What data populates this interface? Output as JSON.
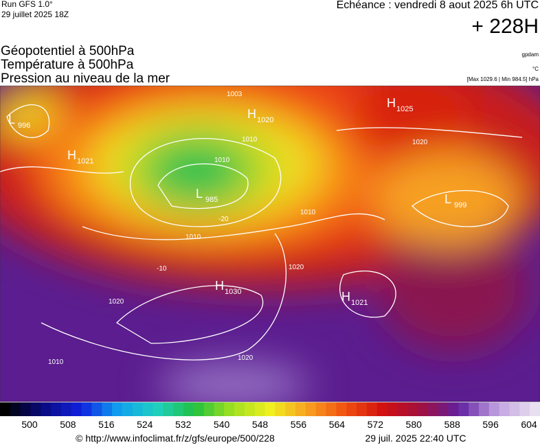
{
  "header": {
    "run": "Run GFS 1.0°",
    "date": "29 juillet 2025 18Z",
    "valid": "Echéance : vendredi 8 aout 2025 6h UTC",
    "lead": "+ 228H"
  },
  "titles": [
    "Géopotentiel à 500hPa",
    "Température à 500hPa",
    "Pression au niveau de la mer"
  ],
  "units": {
    "geopotential": "gpdam",
    "temperature": "°C",
    "pressure": "[Max 1029.6 | Min 984.5] hPa"
  },
  "centers": [
    {
      "kind": "L",
      "value": "996"
    },
    {
      "kind": "H",
      "value": "1021"
    },
    {
      "kind": "L",
      "value": "985"
    },
    {
      "kind": "H",
      "value": "1020"
    },
    {
      "kind": "H",
      "value": "1025"
    },
    {
      "kind": "L",
      "value": "999"
    },
    {
      "kind": "H",
      "value": "1030"
    },
    {
      "kind": "H",
      "value": "1021"
    }
  ],
  "contour_labels": [
    "1003",
    "1010",
    "1010",
    "1010",
    "1010",
    "1020",
    "1020",
    "1020",
    "1020",
    "1010",
    "-20",
    "-10"
  ],
  "colorbar": {
    "labels": [
      500,
      508,
      516,
      524,
      532,
      540,
      548,
      556,
      564,
      572,
      580,
      588,
      596,
      604
    ]
  },
  "footer": {
    "source": "© http://www.infoclimat.fr/z/gfs/europe/500/228",
    "timestamp": "29 juil. 2025 22:40 UTC"
  }
}
